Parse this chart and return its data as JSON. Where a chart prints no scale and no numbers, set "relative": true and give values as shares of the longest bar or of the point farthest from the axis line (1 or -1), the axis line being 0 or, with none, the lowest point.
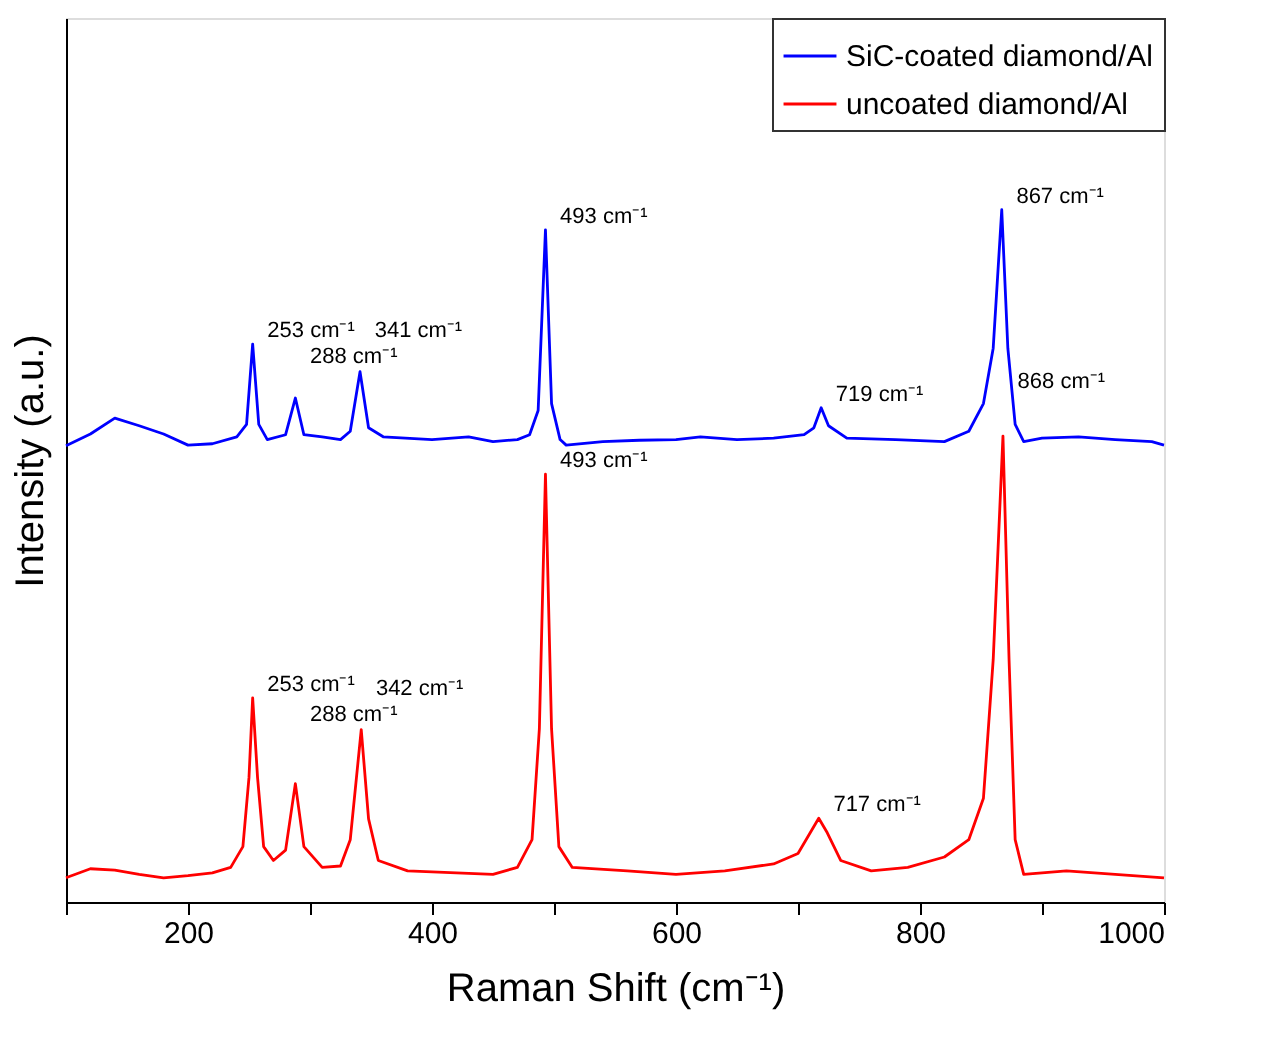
{
  "chart_data": {
    "type": "line",
    "relative": true,
    "xlabel": "Raman Shift (cm⁻¹)",
    "ylabel": "Intensity (a.u.)",
    "xlim": [
      100,
      1000
    ],
    "xticks": [
      {
        "value": 100,
        "label": null
      },
      200,
      {
        "value": 300,
        "label": null
      },
      400,
      {
        "value": 500,
        "label": null
      },
      600,
      {
        "value": 700,
        "label": null
      },
      800,
      {
        "value": 900,
        "label": null
      },
      1000
    ],
    "legend": "top right",
    "grid": false,
    "line_style": "solid",
    "marker": "none",
    "series": [
      {
        "name": "SiC-coated diamond/Al",
        "color": "#0000ff",
        "x": [
          100,
          120,
          140,
          160,
          180,
          200,
          220,
          240,
          248,
          253,
          258,
          265,
          280,
          288,
          295,
          310,
          325,
          333,
          341,
          348,
          360,
          400,
          430,
          450,
          470,
          480,
          487,
          493,
          498,
          505,
          510,
          540,
          570,
          600,
          620,
          650,
          680,
          705,
          713,
          719,
          725,
          740,
          780,
          820,
          840,
          852,
          860,
          867,
          872,
          878,
          885,
          900,
          930,
          960,
          990,
          1000
        ],
        "values": [
          0.659,
          0.676,
          0.699,
          0.688,
          0.676,
          0.66,
          0.662,
          0.672,
          0.69,
          0.806,
          0.69,
          0.668,
          0.675,
          0.728,
          0.675,
          0.672,
          0.668,
          0.68,
          0.766,
          0.685,
          0.672,
          0.668,
          0.672,
          0.665,
          0.668,
          0.675,
          0.71,
          0.971,
          0.72,
          0.668,
          0.66,
          0.665,
          0.667,
          0.668,
          0.672,
          0.668,
          0.67,
          0.675,
          0.685,
          0.714,
          0.688,
          0.67,
          0.668,
          0.665,
          0.68,
          0.72,
          0.8,
          1.0,
          0.8,
          0.69,
          0.665,
          0.67,
          0.672,
          0.668,
          0.665,
          0.66
        ]
      },
      {
        "name": "uncoated diamond/Al",
        "color": "#ff0000",
        "x": [
          100,
          120,
          140,
          160,
          180,
          200,
          220,
          235,
          245,
          250,
          253,
          257,
          262,
          270,
          280,
          288,
          295,
          310,
          325,
          333,
          342,
          348,
          356,
          380,
          420,
          450,
          470,
          482,
          488,
          493,
          498,
          504,
          515,
          560,
          600,
          640,
          680,
          700,
          710,
          717,
          724,
          735,
          760,
          790,
          820,
          840,
          852,
          860,
          868,
          873,
          878,
          885,
          920,
          960,
          1000
        ],
        "values": [
          0.035,
          0.048,
          0.046,
          0.04,
          0.035,
          0.038,
          0.042,
          0.05,
          0.08,
          0.18,
          0.295,
          0.18,
          0.08,
          0.06,
          0.075,
          0.171,
          0.08,
          0.05,
          0.052,
          0.09,
          0.249,
          0.12,
          0.06,
          0.045,
          0.042,
          0.04,
          0.05,
          0.09,
          0.25,
          0.618,
          0.25,
          0.08,
          0.05,
          0.045,
          0.04,
          0.045,
          0.055,
          0.07,
          0.1,
          0.121,
          0.1,
          0.06,
          0.045,
          0.05,
          0.065,
          0.09,
          0.15,
          0.35,
          0.673,
          0.35,
          0.09,
          0.04,
          0.045,
          0.04,
          0.035
        ]
      }
    ],
    "annotations": [
      {
        "text": "253 cm⁻¹",
        "x": 253,
        "y": 0.806
      },
      {
        "text": "288 cm⁻¹",
        "x": 288,
        "y": 0.728
      },
      {
        "text": "341 cm⁻¹",
        "x": 341,
        "y": 0.766
      },
      {
        "text": "493 cm⁻¹",
        "x": 493,
        "y": 0.971
      },
      {
        "text": "719 cm⁻¹",
        "x": 719,
        "y": 0.714
      },
      {
        "text": "867 cm⁻¹",
        "x": 867,
        "y": 1.0
      },
      {
        "text": "253 cm⁻¹",
        "x": 253,
        "y": 0.295
      },
      {
        "text": "288 cm⁻¹",
        "x": 288,
        "y": 0.171
      },
      {
        "text": "342 cm⁻¹",
        "x": 342,
        "y": 0.249
      },
      {
        "text": "493 cm⁻¹",
        "x": 493,
        "y": 0.618
      },
      {
        "text": "717 cm⁻¹",
        "x": 717,
        "y": 0.121
      },
      {
        "text": "868 cm⁻¹",
        "x": 868,
        "y": 0.673
      }
    ]
  }
}
